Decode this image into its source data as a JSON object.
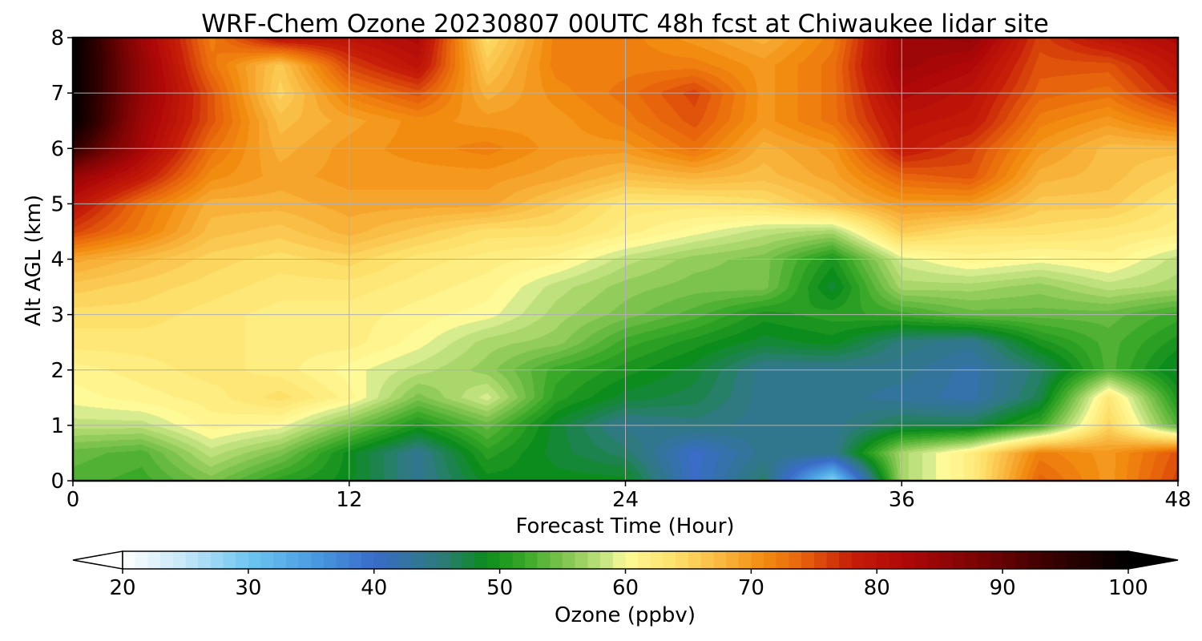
{
  "chart_data": {
    "type": "heatmap",
    "title": "WRF-Chem Ozone  20230807 00UTC 48h fcst at Chiwaukee lidar site",
    "xlabel": "Forecast Time (Hour)",
    "ylabel": "Alt AGL (km)",
    "xlim": [
      0,
      48
    ],
    "ylim": [
      0,
      8
    ],
    "xticks": [
      "0",
      "12",
      "24",
      "36",
      "48"
    ],
    "yticks": [
      "0",
      "1",
      "2",
      "3",
      "4",
      "5",
      "6",
      "7",
      "8"
    ],
    "grid": true,
    "x": [
      0,
      3,
      6,
      9,
      12,
      15,
      18,
      21,
      24,
      27,
      30,
      33,
      36,
      39,
      42,
      45,
      48
    ],
    "y": [
      0,
      0.5,
      1,
      1.5,
      2,
      2.5,
      3,
      3.5,
      4,
      4.5,
      5,
      5.5,
      6,
      6.5,
      7,
      7.5,
      8
    ],
    "z": [
      [
        53,
        52,
        55,
        51,
        49,
        44,
        49,
        49,
        49,
        40,
        46,
        28,
        57,
        62,
        74,
        70,
        76
      ],
      [
        54,
        53,
        58,
        55,
        49,
        44,
        51,
        48,
        46,
        40,
        44,
        44,
        57,
        62,
        72,
        70,
        75
      ],
      [
        58,
        58,
        61,
        60,
        55,
        50,
        54,
        48,
        44,
        45,
        44,
        44,
        47,
        47,
        52,
        65,
        53
      ],
      [
        60,
        61,
        62,
        64,
        61,
        55,
        59,
        51,
        48,
        47,
        44,
        44,
        43,
        42,
        47,
        63,
        50
      ],
      [
        61,
        62,
        63,
        62,
        60,
        58,
        56,
        52,
        50,
        48,
        44,
        44,
        44,
        42,
        46,
        53,
        48
      ],
      [
        63,
        63,
        63,
        62,
        62,
        60,
        57,
        56,
        52,
        50,
        48,
        49,
        45,
        44,
        50,
        53,
        50
      ],
      [
        64,
        64,
        63,
        62,
        62,
        61,
        60,
        57,
        55,
        53,
        50,
        51,
        52,
        54,
        54,
        54,
        52
      ],
      [
        66,
        65,
        64,
        63,
        63,
        62,
        61,
        58,
        56,
        55,
        55,
        48,
        57,
        57,
        56,
        58,
        57
      ],
      [
        69,
        67,
        65,
        64,
        65,
        63,
        62,
        61,
        58,
        56,
        55,
        50,
        59,
        61,
        60,
        61,
        58
      ],
      [
        76,
        72,
        67,
        66,
        68,
        66,
        64,
        64,
        62,
        60,
        58,
        57,
        66,
        64,
        64,
        63,
        62
      ],
      [
        80,
        73,
        68,
        68,
        69,
        69,
        69,
        66,
        63,
        63,
        64,
        67,
        70,
        70,
        66,
        66,
        63
      ],
      [
        85,
        79,
        71,
        69,
        70,
        70,
        70,
        69,
        67,
        68,
        67,
        69,
        74,
        75,
        68,
        67,
        65
      ],
      [
        95,
        83,
        73,
        68,
        70,
        71,
        72,
        70,
        70,
        73,
        68,
        70,
        79,
        76,
        70,
        67,
        67
      ],
      [
        100,
        84,
        75,
        67,
        69,
        71,
        70,
        70,
        72,
        75,
        70,
        73,
        80,
        79,
        72,
        70,
        73
      ],
      [
        100,
        85,
        75,
        65,
        72,
        75,
        68,
        71,
        73,
        76,
        70,
        73,
        82,
        80,
        74,
        73,
        78
      ],
      [
        100,
        85,
        73,
        66,
        76,
        80,
        66,
        72,
        72,
        72,
        70,
        73,
        84,
        82,
        75,
        75,
        80
      ],
      [
        100,
        84,
        72,
        80,
        80,
        82,
        64,
        72,
        72,
        70,
        68,
        72,
        84,
        85,
        76,
        80,
        82
      ]
    ],
    "colorbar": {
      "label": "Ozone  (ppbv)",
      "min": 20,
      "max": 100,
      "ticks": [
        "20",
        "30",
        "40",
        "50",
        "60",
        "70",
        "80",
        "90",
        "100"
      ],
      "extend": "both",
      "colormap": [
        [
          20,
          "#ffffff"
        ],
        [
          25,
          "#c4e6f8"
        ],
        [
          30,
          "#6ec6f0"
        ],
        [
          35,
          "#4a9de2"
        ],
        [
          40,
          "#3a6cc8"
        ],
        [
          45,
          "#2e7a80"
        ],
        [
          49,
          "#0c8c1c"
        ],
        [
          52,
          "#3aa828"
        ],
        [
          56,
          "#92cc5a"
        ],
        [
          59,
          "#d6ec8e"
        ],
        [
          60,
          "#fffa98"
        ],
        [
          64,
          "#fde06a"
        ],
        [
          68,
          "#f8b23a"
        ],
        [
          71,
          "#f28c10"
        ],
        [
          74,
          "#e8640c"
        ],
        [
          78,
          "#c61e08"
        ],
        [
          82,
          "#b00808"
        ],
        [
          88,
          "#7a0404"
        ],
        [
          94,
          "#360000"
        ],
        [
          100,
          "#000000"
        ]
      ]
    }
  }
}
